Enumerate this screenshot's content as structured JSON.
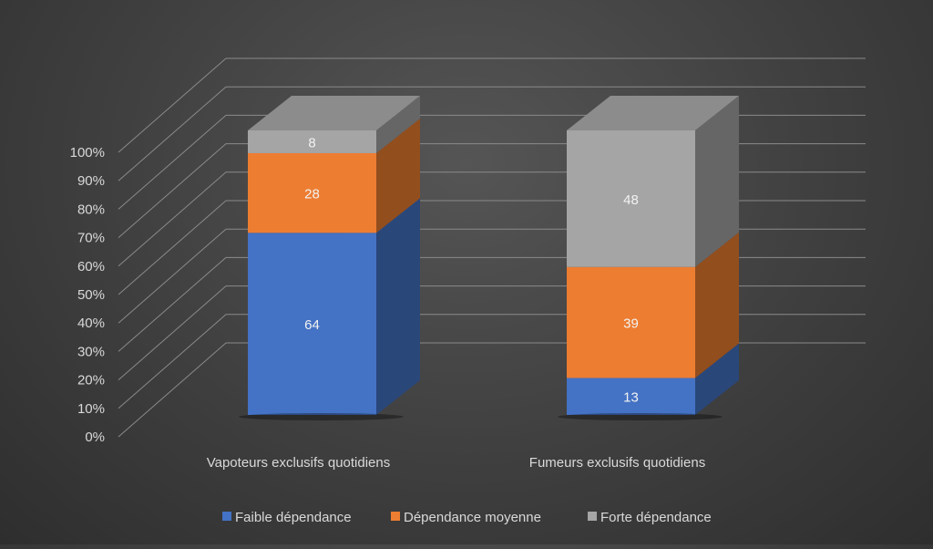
{
  "chart_data": {
    "type": "bar",
    "stacked": true,
    "three_d": true,
    "percent_stacked": true,
    "categories": [
      "Vapoteurs exclusifs quotidiens",
      "Fumeurs exclusifs quotidiens"
    ],
    "series": [
      {
        "name": "Faible dépendance",
        "values": [
          64,
          13
        ],
        "color": "#4472c4"
      },
      {
        "name": "Dépendance moyenne",
        "values": [
          28,
          39
        ],
        "color": "#ed7d31"
      },
      {
        "name": "Forte dépendance",
        "values": [
          8,
          48
        ],
        "color": "#a5a5a5"
      }
    ],
    "ylim": [
      0,
      100
    ],
    "yticks": [
      "0%",
      "10%",
      "20%",
      "30%",
      "40%",
      "50%",
      "60%",
      "70%",
      "80%",
      "90%",
      "100%"
    ],
    "grid": true,
    "legend_position": "bottom"
  }
}
